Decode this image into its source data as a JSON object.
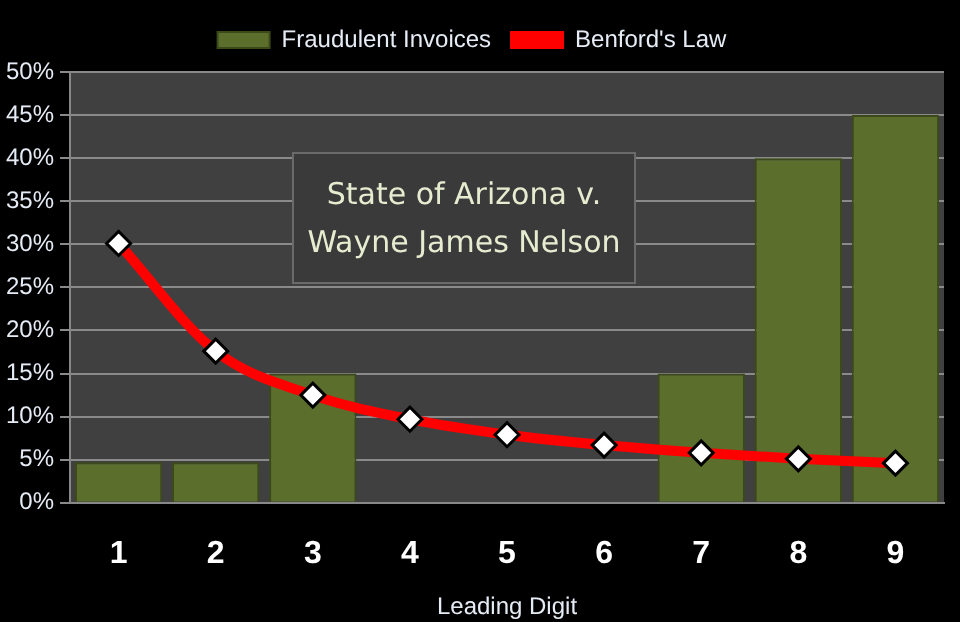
{
  "chart_data": {
    "type": "bar",
    "xlabel": "Leading Digit",
    "categories": [
      "1",
      "2",
      "3",
      "4",
      "5",
      "6",
      "7",
      "8",
      "9"
    ],
    "series": [
      {
        "name": "Fraudulent Invoices",
        "color": "#5b6e2c",
        "values": [
          4.7,
          4.7,
          15,
          0,
          0,
          0,
          15,
          40,
          45
        ]
      },
      {
        "name": "Benford's Law",
        "type": "line",
        "color": "#ff0000",
        "marker": "diamond",
        "values": [
          30.1,
          17.6,
          12.5,
          9.7,
          7.9,
          6.7,
          5.8,
          5.1,
          4.6
        ]
      }
    ],
    "ylim": [
      0,
      50
    ],
    "yticks": [
      {
        "value": 0,
        "label": "0%"
      },
      {
        "value": 5,
        "label": "5%"
      },
      {
        "value": 10,
        "label": "10%"
      },
      {
        "value": 15,
        "label": "15%"
      },
      {
        "value": 20,
        "label": "20%"
      },
      {
        "value": 25,
        "label": "25%"
      },
      {
        "value": 30,
        "label": "30%"
      },
      {
        "value": 35,
        "label": "35%"
      },
      {
        "value": 40,
        "label": "40%"
      },
      {
        "value": 45,
        "label": "45%"
      },
      {
        "value": 50,
        "label": "50%"
      }
    ],
    "grid": "y",
    "legend": "top",
    "annotations": [
      "State of Arizona v. Wayne James Nelson"
    ]
  }
}
